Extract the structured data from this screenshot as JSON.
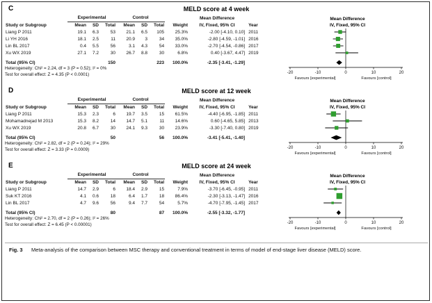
{
  "caption": {
    "label": "Fig. 3",
    "text": "Meta-analysis of the comparison between MSC therapy and conventional treatment in terms of model of end-stage liver disease (MELD) score."
  },
  "table_headers": {
    "study": "Study or Subgroup",
    "experimental": "Experimental",
    "control": "Control",
    "mean": "Mean",
    "sd": "SD",
    "total": "Total",
    "weight": "Weight",
    "md_line1": "Mean Difference",
    "md_line2": "IV, Fixed, 95% CI",
    "year": "Year"
  },
  "chart_data": {
    "type": "forest",
    "style": {
      "marker_color": "#2f9e2f",
      "diamond_color": "#000000",
      "line_color": "#000000"
    },
    "axis": {
      "ticks": [
        -20,
        -10,
        0,
        10,
        20
      ],
      "min": -25,
      "max": 25,
      "left_label": "Favours [experimental]",
      "right_label": "Favours [control]"
    },
    "panels": [
      {
        "label": "C",
        "title": "MELD score at 4 week",
        "studies": [
          {
            "name": "Liang P 2011",
            "exp": {
              "mean": "19.1",
              "sd": "6.3",
              "total": "53"
            },
            "ctrl": {
              "mean": "21.1",
              "sd": "6.5",
              "total": "105"
            },
            "weight": "25.3%",
            "weight_value": 25.3,
            "md": "-2.00 [-4.10, 0.10]",
            "ci": [
              -2.0,
              -4.1,
              0.1
            ],
            "year": "2011"
          },
          {
            "name": "Li YH 2016",
            "exp": {
              "mean": "18.1",
              "sd": "2.5",
              "total": "11"
            },
            "ctrl": {
              "mean": "20.9",
              "sd": "3",
              "total": "34"
            },
            "weight": "35.0%",
            "weight_value": 35.0,
            "md": "-2.80 [-4.59, -1.01]",
            "ci": [
              -2.8,
              -4.59,
              -1.01
            ],
            "year": "2016"
          },
          {
            "name": "Lin BL 2017",
            "exp": {
              "mean": "0.4",
              "sd": "5.5",
              "total": "56"
            },
            "ctrl": {
              "mean": "3.1",
              "sd": "4.3",
              "total": "54"
            },
            "weight": "33.0%",
            "weight_value": 33.0,
            "md": "-2.70 [-4.54, -0.86]",
            "ci": [
              -2.7,
              -4.54,
              -0.86
            ],
            "year": "2017"
          },
          {
            "name": "Xu WX 2019",
            "exp": {
              "mean": "27.1",
              "sd": "7.2",
              "total": "30"
            },
            "ctrl": {
              "mean": "26.7",
              "sd": "8.8",
              "total": "30"
            },
            "weight": "6.8%",
            "weight_value": 6.8,
            "md": "0.40 [-3.67, 4.47]",
            "ci": [
              0.4,
              -3.67,
              4.47
            ],
            "year": "2019"
          }
        ],
        "total": {
          "label": "Total (95% CI)",
          "exp_total": "150",
          "ctrl_total": "223",
          "weight": "100.0%",
          "md": "-2.35 [-3.41, -1.29]",
          "ci": [
            -2.35,
            -3.41,
            -1.29
          ]
        },
        "heterogeneity": "Heterogeneity: Chi² = 2.24, df = 3 (P = 0.52); I² = 0%",
        "overall_effect": "Test for overall effect: Z = 4.35 (P < 0.0001)"
      },
      {
        "label": "D",
        "title": "MELD score at 12 week",
        "studies": [
          {
            "name": "Liang P 2011",
            "exp": {
              "mean": "15.3",
              "sd": "2.3",
              "total": "6"
            },
            "ctrl": {
              "mean": "19.7",
              "sd": "3.5",
              "total": "15"
            },
            "weight": "61.5%",
            "weight_value": 61.5,
            "md": "-4.40 [-6.95, -1.85]",
            "ci": [
              -4.4,
              -6.95,
              -1.85
            ],
            "year": "2011"
          },
          {
            "name": "Mohamadnejad M 2013",
            "exp": {
              "mean": "15.3",
              "sd": "8.2",
              "total": "14"
            },
            "ctrl": {
              "mean": "14.7",
              "sd": "5.1",
              "total": "11"
            },
            "weight": "14.6%",
            "weight_value": 14.6,
            "md": "0.60 [-4.65, 5.85]",
            "ci": [
              0.6,
              -4.65,
              5.85
            ],
            "year": "2013"
          },
          {
            "name": "Xu WX 2019",
            "exp": {
              "mean": "20.8",
              "sd": "6.7",
              "total": "30"
            },
            "ctrl": {
              "mean": "24.1",
              "sd": "9.3",
              "total": "30"
            },
            "weight": "23.9%",
            "weight_value": 23.9,
            "md": "-3.30 [-7.40, 0.80]",
            "ci": [
              -3.3,
              -7.4,
              0.8
            ],
            "year": "2019"
          }
        ],
        "total": {
          "label": "Total (95% CI)",
          "exp_total": "50",
          "ctrl_total": "56",
          "weight": "100.0%",
          "md": "-3.41 [-5.41, -1.40]",
          "ci": [
            -3.41,
            -5.41,
            -1.4
          ]
        },
        "heterogeneity": "Heterogeneity: Chi² = 2.82, df = 2 (P = 0.24); I² = 29%",
        "overall_effect": "Test for overall effect: Z = 3.33 (P = 0.0009)"
      },
      {
        "label": "E",
        "title": "MELD score at 24 week",
        "studies": [
          {
            "name": "Liang P 2011",
            "exp": {
              "mean": "14.7",
              "sd": "2.9",
              "total": "6"
            },
            "ctrl": {
              "mean": "18.4",
              "sd": "2.9",
              "total": "15"
            },
            "weight": "7.9%",
            "weight_value": 7.9,
            "md": "-3.70 [-6.45, -0.95]",
            "ci": [
              -3.7,
              -6.45,
              -0.95
            ],
            "year": "2011"
          },
          {
            "name": "Suk KT 2016",
            "exp": {
              "mean": "4.1",
              "sd": "0.6",
              "total": "18"
            },
            "ctrl": {
              "mean": "6.4",
              "sd": "1.7",
              "total": "18"
            },
            "weight": "86.4%",
            "weight_value": 86.4,
            "md": "-2.30 [-3.13, -1.47]",
            "ci": [
              -2.3,
              -3.13,
              -1.47
            ],
            "year": "2016"
          },
          {
            "name": "Lin BL 2017",
            "exp": {
              "mean": "4.7",
              "sd": "9.6",
              "total": "56"
            },
            "ctrl": {
              "mean": "9.4",
              "sd": "7.7",
              "total": "54"
            },
            "weight": "5.7%",
            "weight_value": 5.7,
            "md": "-4.70 [-7.95, -1.45]",
            "ci": [
              -4.7,
              -7.95,
              -1.45
            ],
            "year": "2017"
          }
        ],
        "total": {
          "label": "Total (95% CI)",
          "exp_total": "80",
          "ctrl_total": "87",
          "weight": "100.0%",
          "md": "-2.55 [-3.32, -1.77]",
          "ci": [
            -2.55,
            -3.32,
            -1.77
          ]
        },
        "heterogeneity": "Heterogeneity: Chi² = 2.70, df = 2 (P = 0.26); I² = 26%",
        "overall_effect": "Test for overall effect: Z = 6.45 (P < 0.00001)"
      }
    ]
  }
}
